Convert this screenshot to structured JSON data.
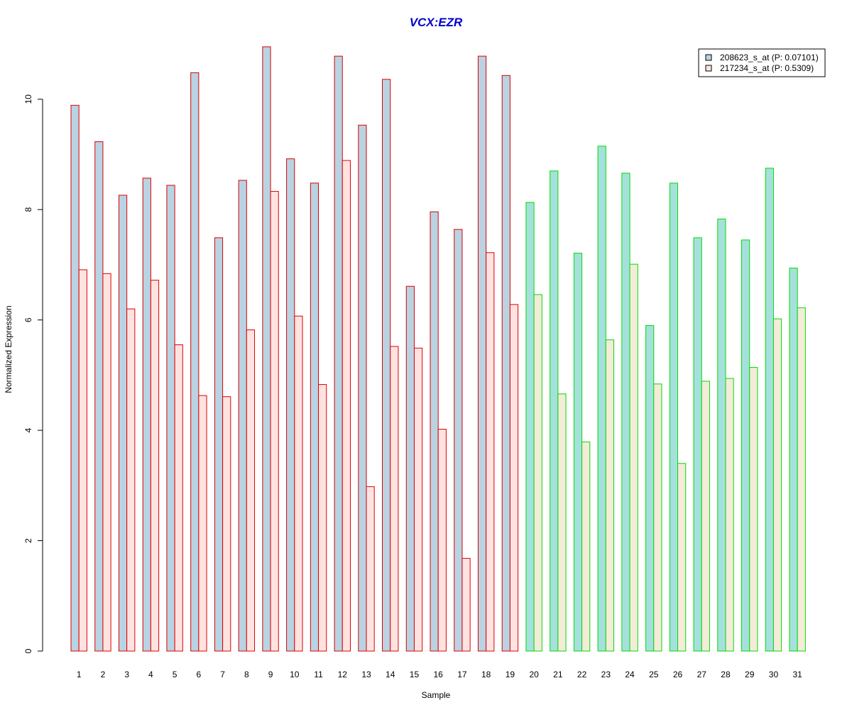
{
  "chart_data": {
    "type": "bar",
    "title": "VCX:EZR",
    "xlabel": "Sample",
    "ylabel": "Normalized Expression",
    "ylim": [
      0,
      11
    ],
    "yticks": [
      0,
      2,
      4,
      6,
      8,
      10
    ],
    "grid": false,
    "legend_position": "top-right",
    "categories": [
      "1",
      "2",
      "3",
      "4",
      "5",
      "6",
      "7",
      "8",
      "9",
      "10",
      "11",
      "12",
      "13",
      "14",
      "15",
      "16",
      "17",
      "18",
      "19",
      "20",
      "21",
      "22",
      "23",
      "24",
      "25",
      "26",
      "27",
      "28",
      "29",
      "30",
      "31"
    ],
    "groups": [
      {
        "samples": [
          "1",
          "2",
          "3",
          "4",
          "5",
          "6",
          "7",
          "8",
          "9",
          "10",
          "11",
          "12",
          "13",
          "14",
          "15",
          "16",
          "17",
          "18",
          "19"
        ],
        "outline_color": "#dd0000",
        "fills": [
          "#b9d3e2",
          "#ffe3e1"
        ]
      },
      {
        "samples": [
          "20",
          "21",
          "22",
          "23",
          "24",
          "25",
          "26",
          "27",
          "28",
          "29",
          "30",
          "31"
        ],
        "outline_color": "#00dd00",
        "fills": [
          "#a6e0dd",
          "#f5ebd9"
        ]
      }
    ],
    "series": [
      {
        "name": "208623_s_at (P: 0.07101)",
        "legend_swatch": "#b9d3e2",
        "values": [
          9.89,
          9.23,
          8.26,
          8.57,
          8.44,
          10.48,
          7.49,
          8.53,
          10.95,
          8.92,
          8.48,
          10.78,
          9.53,
          10.36,
          6.61,
          7.96,
          7.64,
          10.78,
          10.43,
          8.13,
          8.7,
          7.21,
          9.15,
          8.66,
          5.9,
          8.48,
          7.49,
          7.83,
          7.45,
          8.75,
          6.94
        ]
      },
      {
        "name": "217234_s_at (P: 0.5309)",
        "legend_swatch": "#ffe3e1",
        "values": [
          6.91,
          6.84,
          6.2,
          6.72,
          5.55,
          4.63,
          4.61,
          5.82,
          8.33,
          6.07,
          4.83,
          8.89,
          2.98,
          5.52,
          5.49,
          4.02,
          1.68,
          7.22,
          6.28,
          6.46,
          4.66,
          3.79,
          5.64,
          7.01,
          4.84,
          3.4,
          4.89,
          4.94,
          5.14,
          6.02,
          6.22
        ]
      }
    ],
    "colors": {
      "title": "#0000cc",
      "axis": "#000000",
      "legend_border": "#000000"
    }
  }
}
